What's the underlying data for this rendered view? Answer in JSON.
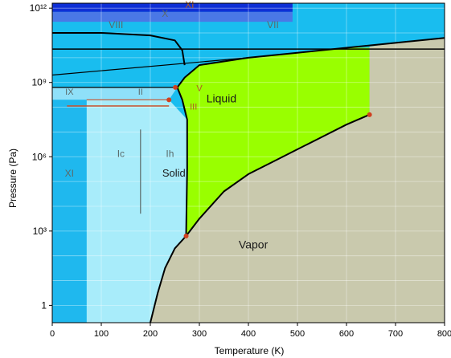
{
  "chart_data": {
    "type": "area",
    "title": "",
    "xlabel": "Temperature (K)",
    "ylabel": "Pressure (Pa)",
    "xlim": [
      0,
      800
    ],
    "ylim_log10": [
      -0.7,
      12.2
    ],
    "x_scale": "linear",
    "y_scale": "log",
    "grid": true,
    "x_ticks": [
      "0",
      "100",
      "200",
      "300",
      "400",
      "500",
      "600",
      "700",
      "800"
    ],
    "y_ticks": [
      {
        "label": "1",
        "log10": 0
      },
      {
        "label": "10³",
        "log10": 3
      },
      {
        "label": "10⁶",
        "log10": 6
      },
      {
        "label": "10⁹",
        "log10": 9
      },
      {
        "label": "10¹²",
        "log10": 12
      }
    ],
    "regions": [
      {
        "name": "Vapor",
        "label": "Vapor",
        "color": "#c9c9ad"
      },
      {
        "name": "Liquid",
        "label": "Liquid",
        "color": "#99ff00"
      },
      {
        "name": "Solid",
        "label": "Solid",
        "color": "#a8ecfa"
      },
      {
        "name": "Ih",
        "label": "Ih",
        "color": "#a8ecfa"
      },
      {
        "name": "Ic",
        "label": "Ic",
        "color": "#a8ecfa"
      },
      {
        "name": "XI",
        "label": "XI",
        "color": "#1fb8ee"
      },
      {
        "name": "VII",
        "label": "VII",
        "color": "#19bdef"
      },
      {
        "name": "VIII",
        "label": "VIII",
        "color": "#19bdef"
      },
      {
        "name": "X",
        "label": "X",
        "color": "#4a78e6"
      },
      {
        "name": "XI-high",
        "label": "XI",
        "color": "#0e2fd6"
      },
      {
        "name": "IX",
        "label": "IX",
        "color": "#8fe0f9"
      },
      {
        "name": "II",
        "label": "II",
        "color": "#8fe0f9"
      },
      {
        "name": "V",
        "label": "V",
        "color": "#8fe0f9"
      },
      {
        "name": "III",
        "label": "III",
        "color": "#8fe0f9"
      }
    ],
    "boundaries": {
      "sublimation": [
        [
          200,
          -0.7
        ],
        [
          215,
          0.5
        ],
        [
          230,
          1.5
        ],
        [
          250,
          2.3
        ],
        [
          273,
          2.8
        ]
      ],
      "vaporization": [
        [
          273,
          2.8
        ],
        [
          300,
          3.5
        ],
        [
          350,
          4.6
        ],
        [
          400,
          5.3
        ],
        [
          450,
          5.8
        ],
        [
          500,
          6.3
        ],
        [
          550,
          6.8
        ],
        [
          600,
          7.3
        ],
        [
          647,
          7.7
        ]
      ],
      "melting": [
        [
          273,
          2.8
        ],
        [
          275,
          5.5
        ],
        [
          275,
          7.5
        ],
        [
          265,
          8.3
        ],
        [
          255,
          8.8
        ],
        [
          270,
          9.2
        ],
        [
          300,
          9.7
        ],
        [
          400,
          10.0
        ],
        [
          500,
          10.2
        ],
        [
          600,
          10.4
        ],
        [
          700,
          10.6
        ],
        [
          800,
          10.8
        ]
      ],
      "ice_VII_VIII": [
        [
          0,
          11.0
        ],
        [
          100,
          11.0
        ],
        [
          200,
          10.9
        ],
        [
          250,
          10.7
        ],
        [
          265,
          10.3
        ],
        [
          270,
          9.7
        ]
      ]
    },
    "triple_points": [
      {
        "x": 273,
        "log10p": 2.8
      },
      {
        "x": 647,
        "log10p": 7.7
      },
      {
        "x": 238,
        "log10p": 8.3
      },
      {
        "x": 251,
        "log10p": 8.8
      }
    ],
    "annotations": [
      "Liquid",
      "Vapor",
      "Solid",
      "Ih",
      "Ic",
      "XI",
      "VII",
      "VIII",
      "X",
      "XI",
      "IX",
      "II",
      "V",
      "III"
    ]
  }
}
